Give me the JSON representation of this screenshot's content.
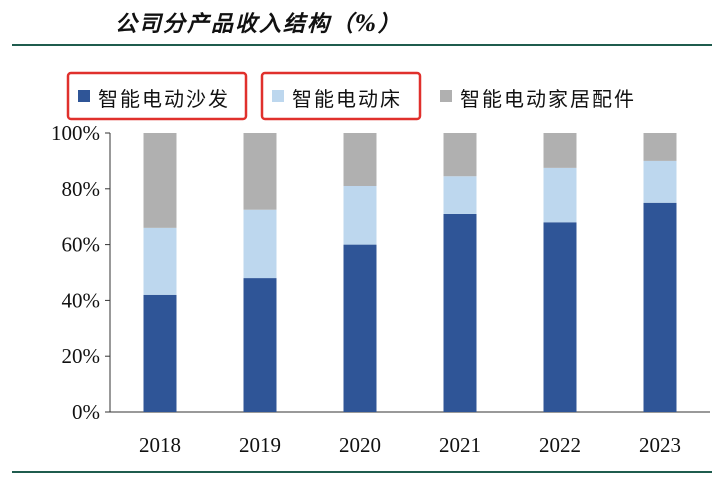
{
  "title": "公司分产品收入结构（%）",
  "chart_data": {
    "type": "bar",
    "stacked": true,
    "title": "公司分产品收入结构（%）",
    "categories": [
      "2018",
      "2019",
      "2020",
      "2021",
      "2022",
      "2023"
    ],
    "series": [
      {
        "name": "智能电动沙发",
        "color": "#2f5597",
        "values": [
          42,
          48,
          60,
          71,
          68,
          75
        ]
      },
      {
        "name": "智能电动床",
        "color": "#bdd7ee",
        "values": [
          24,
          24.5,
          21,
          13.5,
          19.5,
          15
        ]
      },
      {
        "name": "智能电动家居配件",
        "color": "#b0b0b0",
        "values": [
          34,
          27.5,
          19,
          15.5,
          12.5,
          10
        ]
      }
    ],
    "yticks": [
      "0%",
      "20%",
      "40%",
      "60%",
      "80%",
      "100%"
    ],
    "ylim": [
      0,
      100
    ],
    "legend_position": "top",
    "grid": false,
    "highlighted_legend_entries": [
      "智能电动沙发",
      "智能电动床"
    ],
    "highlight_color": "#e0302c"
  }
}
